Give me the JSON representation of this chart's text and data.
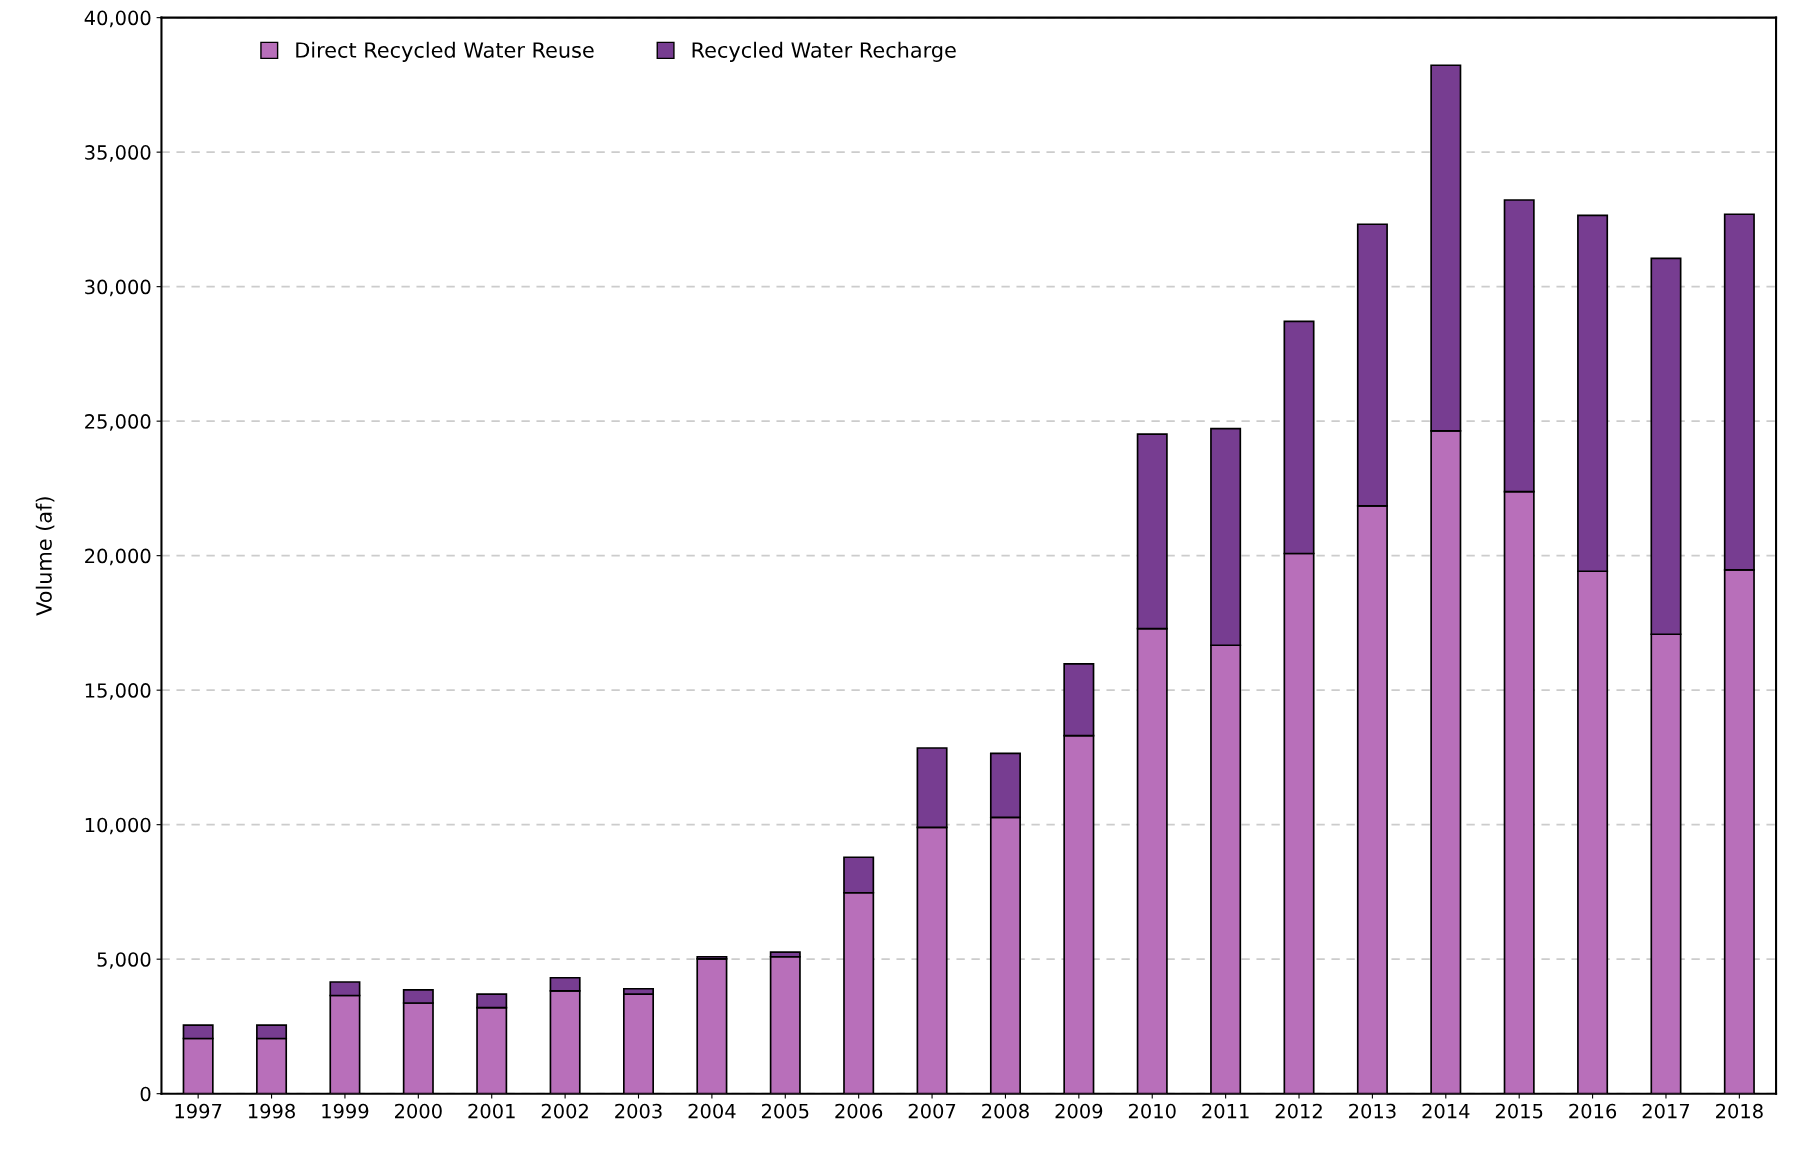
{
  "chart_data": {
    "type": "bar",
    "stacked": true,
    "ylabel": "Volume (af)",
    "categories": [
      "1997",
      "1998",
      "1999",
      "2000",
      "2001",
      "2002",
      "2003",
      "2004",
      "2005",
      "2006",
      "2007",
      "2008",
      "2009",
      "2010",
      "2011",
      "2012",
      "2013",
      "2014",
      "2015",
      "2016",
      "2017",
      "2018"
    ],
    "series": [
      {
        "name": "Direct Recycled Water Reuse",
        "color": "#b86fba",
        "values": [
          2050,
          2050,
          3650,
          3370,
          3200,
          3820,
          3700,
          5010,
          5090,
          7470,
          9900,
          10270,
          13310,
          17290,
          16670,
          20080,
          21850,
          24640,
          22380,
          19420,
          17080,
          19470
        ]
      },
      {
        "name": "Recycled Water Recharge",
        "color": "#773d91",
        "values": [
          500,
          500,
          500,
          490,
          500,
          490,
          200,
          80,
          170,
          1320,
          2950,
          2380,
          2670,
          7230,
          8050,
          8630,
          10470,
          13590,
          10840,
          13230,
          13970,
          13220
        ]
      }
    ],
    "ylim": [
      0,
      40000
    ],
    "yticks": [
      0,
      {
        "value": 5000,
        "label": "5,000"
      },
      {
        "value": 10000,
        "label": "10,000"
      },
      {
        "value": 15000,
        "label": "15,000"
      },
      {
        "value": 20000,
        "label": "20,000"
      },
      {
        "value": 25000,
        "label": "25,000"
      },
      {
        "value": 30000,
        "label": "30,000"
      },
      {
        "value": 35000,
        "label": "35,000"
      },
      {
        "value": 40000,
        "label": "40,000"
      }
    ],
    "grid": "y",
    "legend": "top left"
  }
}
